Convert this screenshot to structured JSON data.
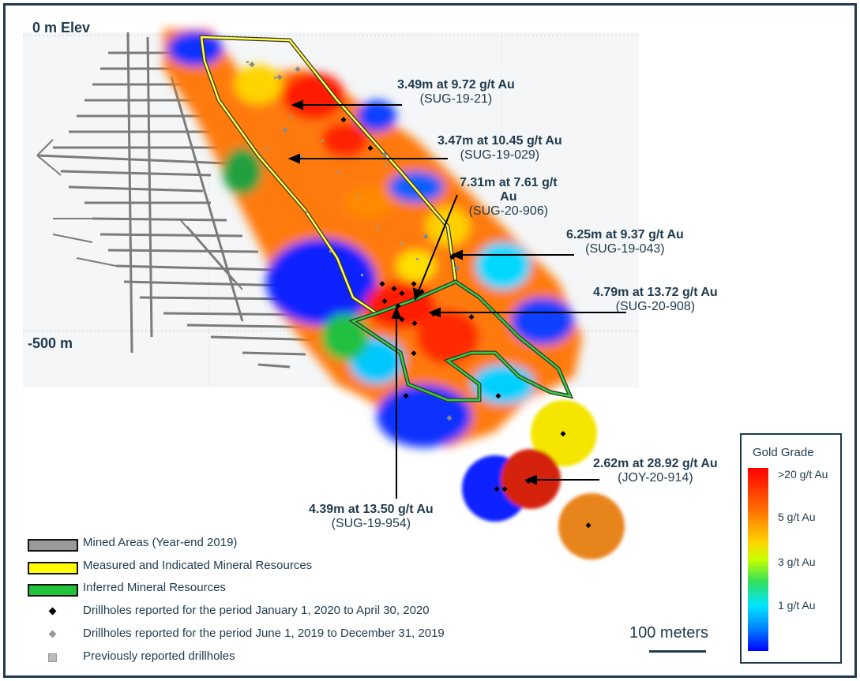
{
  "elevation_labels": {
    "top": "0 m Elev",
    "bottom": "-500 m"
  },
  "callouts": [
    {
      "line1": "3.49m at 9.72 g/t Au",
      "line2": "(SUG-19-21)"
    },
    {
      "line1": "3.47m at 10.45 g/t Au",
      "line2": "(SUG-19-029)"
    },
    {
      "line1": "7.31m at 7.61 g/t",
      "line1b": "Au",
      "line2": "(SUG-20-906)"
    },
    {
      "line1": "6.25m at 9.37 g/t Au",
      "line2": "(SUG-19-043)"
    },
    {
      "line1": "4.79m at 13.72 g/t Au",
      "line2": "(SUG-20-908)"
    },
    {
      "line1": "2.62m at 28.92 g/t Au",
      "line2": "(JOY-20-914)"
    },
    {
      "line1": "4.39m at 13.50 g/t Au",
      "line2": "(SUG-19-954)"
    }
  ],
  "legend": {
    "mined": "Mined Areas (Year-end 2019)",
    "measured": "Measured and Indicated Mineral Resources",
    "inferred": "Inferred Mineral Resources",
    "drill_2020": "Drillholes reported for the period January 1, 2020 to April 30, 2020",
    "drill_2019": "Drillholes reported for the period June 1, 2019 to December 31, 2019",
    "drill_prev": "Previously reported drillholes"
  },
  "scale_bar": {
    "label": "100 meters"
  },
  "grade_legend": {
    "title": "Gold Grade",
    "ticks": [
      ">20 g/t Au",
      "5 g/t Au",
      "3 g/t Au",
      "1 g/t Au"
    ]
  },
  "colors": {
    "frame": "#1f3a4d",
    "mined": "#9a9a9a",
    "measured": "#ffff00",
    "inferred": "#22c23a",
    "grade_high": "#ff0000",
    "grade_low": "#0000ff"
  }
}
